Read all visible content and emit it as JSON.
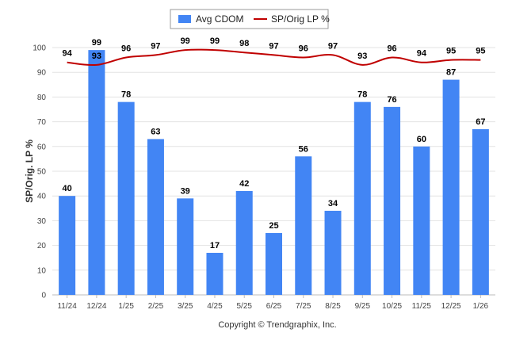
{
  "chart_data": {
    "type": "bar",
    "categories": [
      "11/24",
      "12/24",
      "1/25",
      "2/25",
      "3/25",
      "4/25",
      "5/25",
      "6/25",
      "7/25",
      "8/25",
      "9/25",
      "10/25",
      "11/25",
      "12/25",
      "1/26"
    ],
    "series": [
      {
        "name": "Avg CDOM",
        "type": "bar",
        "color": "#4285f4",
        "values": [
          40,
          99,
          78,
          63,
          39,
          17,
          42,
          25,
          56,
          34,
          78,
          76,
          60,
          87,
          67
        ]
      },
      {
        "name": "SP/Orig LP %",
        "type": "line",
        "color": "#c00000",
        "values": [
          94,
          93,
          96,
          97,
          99,
          99,
          98,
          97,
          96,
          97,
          93,
          96,
          94,
          95,
          95
        ]
      }
    ],
    "ylabel": "SP/Orig. LP %",
    "xlabel": "",
    "ylim": [
      0,
      100
    ],
    "yticks": [
      0,
      10,
      20,
      30,
      40,
      50,
      60,
      70,
      80,
      90,
      100
    ],
    "grid": true,
    "legend_position": "top-center"
  },
  "footer": {
    "copyright": "Copyright © Trendgraphix, Inc."
  }
}
